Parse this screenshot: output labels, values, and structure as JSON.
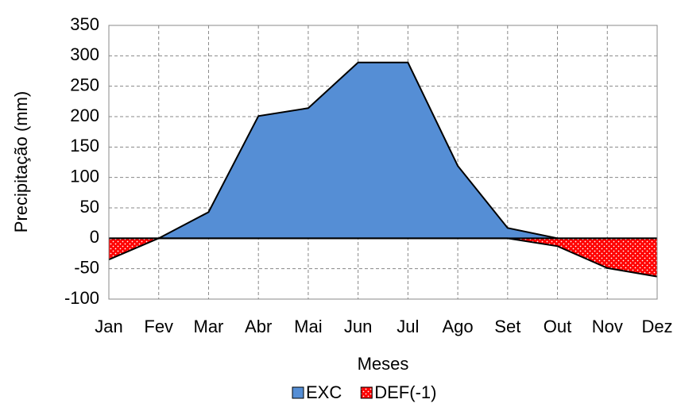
{
  "chart_data": {
    "type": "area",
    "x_label": "Meses",
    "y_label": "Precipitação (mm)",
    "categories": [
      "Jan",
      "Fev",
      "Mar",
      "Abr",
      "Mai",
      "Jun",
      "Jul",
      "Ago",
      "Set",
      "Out",
      "Nov",
      "Dez"
    ],
    "series": [
      {
        "name": "EXC",
        "color": "#558ed5",
        "values": [
          0,
          0,
          43,
          201,
          214,
          289,
          289,
          119,
          17,
          0,
          0,
          0
        ]
      },
      {
        "name": "DEF(-1)",
        "color": "#ff0000",
        "values": [
          -35,
          0,
          0,
          0,
          0,
          0,
          0,
          0,
          0,
          -13,
          -49,
          -63
        ]
      }
    ],
    "ylim": [
      -100,
      350
    ],
    "yticks": [
      -100,
      -50,
      0,
      50,
      100,
      150,
      200,
      250,
      300,
      350
    ],
    "grid": true,
    "legend": "bottom"
  }
}
